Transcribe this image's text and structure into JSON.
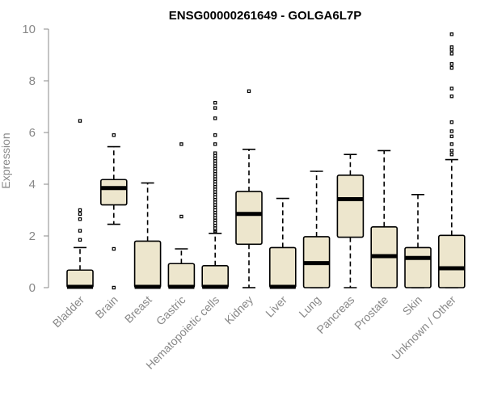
{
  "chart_data": {
    "type": "boxplot",
    "title": "ENSG00000261649 - GOLGA6L7P",
    "xlabel": "",
    "ylabel": "Expression",
    "ylim": [
      0,
      10
    ],
    "yticks": [
      0,
      2,
      4,
      6,
      8,
      10
    ],
    "grid": false,
    "fill_color": "#ede6cd",
    "categories": [
      "Bladder",
      "Brain",
      "Breast",
      "Gastric",
      "Hematopoietic cells",
      "Kidney",
      "Liver",
      "Lung",
      "Pancreas",
      "Prostate",
      "Skin",
      "Unknown / Other"
    ],
    "boxes": [
      {
        "q1": 0.0,
        "median": 0.03,
        "q3": 0.68,
        "whisker_low": 0.0,
        "whisker_high": 1.55,
        "outliers": [
          1.85,
          2.2,
          2.65,
          2.85,
          3.0,
          6.45
        ]
      },
      {
        "q1": 3.2,
        "median": 3.85,
        "q3": 4.18,
        "whisker_low": 2.45,
        "whisker_high": 5.45,
        "outliers": [
          0.0,
          1.5,
          5.9
        ]
      },
      {
        "q1": 0.0,
        "median": 0.03,
        "q3": 1.8,
        "whisker_low": 0.0,
        "whisker_high": 4.05,
        "outliers": []
      },
      {
        "q1": 0.0,
        "median": 0.03,
        "q3": 0.93,
        "whisker_low": 0.0,
        "whisker_high": 1.5,
        "outliers": [
          2.75,
          5.55
        ]
      },
      {
        "q1": 0.0,
        "median": 0.03,
        "q3": 0.85,
        "whisker_low": 0.0,
        "whisker_high": 2.1,
        "outliers": [
          2.15,
          2.2,
          2.3,
          2.4,
          2.5,
          2.6,
          2.7,
          2.8,
          2.9,
          3.0,
          3.1,
          3.2,
          3.3,
          3.4,
          3.5,
          3.6,
          3.7,
          3.8,
          3.9,
          4.0,
          4.1,
          4.2,
          4.3,
          4.4,
          4.5,
          4.6,
          4.7,
          4.8,
          4.9,
          5.0,
          5.1,
          5.2,
          5.55,
          5.9,
          6.55,
          6.95,
          7.15
        ]
      },
      {
        "q1": 1.68,
        "median": 2.85,
        "q3": 3.72,
        "whisker_low": 0.0,
        "whisker_high": 5.35,
        "outliers": [
          7.6
        ]
      },
      {
        "q1": 0.0,
        "median": 0.03,
        "q3": 1.55,
        "whisker_low": 0.0,
        "whisker_high": 3.45,
        "outliers": []
      },
      {
        "q1": 0.0,
        "median": 0.95,
        "q3": 1.97,
        "whisker_low": 0.0,
        "whisker_high": 4.5,
        "outliers": []
      },
      {
        "q1": 1.95,
        "median": 3.42,
        "q3": 4.35,
        "whisker_low": 0.0,
        "whisker_high": 5.15,
        "outliers": []
      },
      {
        "q1": 0.0,
        "median": 1.22,
        "q3": 2.35,
        "whisker_low": 0.0,
        "whisker_high": 5.3,
        "outliers": []
      },
      {
        "q1": 0.0,
        "median": 1.15,
        "q3": 1.55,
        "whisker_low": 0.0,
        "whisker_high": 3.6,
        "outliers": []
      },
      {
        "q1": 0.0,
        "median": 0.75,
        "q3": 2.02,
        "whisker_low": 0.0,
        "whisker_high": 4.95,
        "outliers": [
          5.15,
          5.3,
          5.55,
          5.85,
          6.05,
          6.4,
          7.4,
          7.7,
          8.5,
          8.65,
          9.05,
          9.2,
          9.3,
          9.8
        ]
      }
    ]
  }
}
